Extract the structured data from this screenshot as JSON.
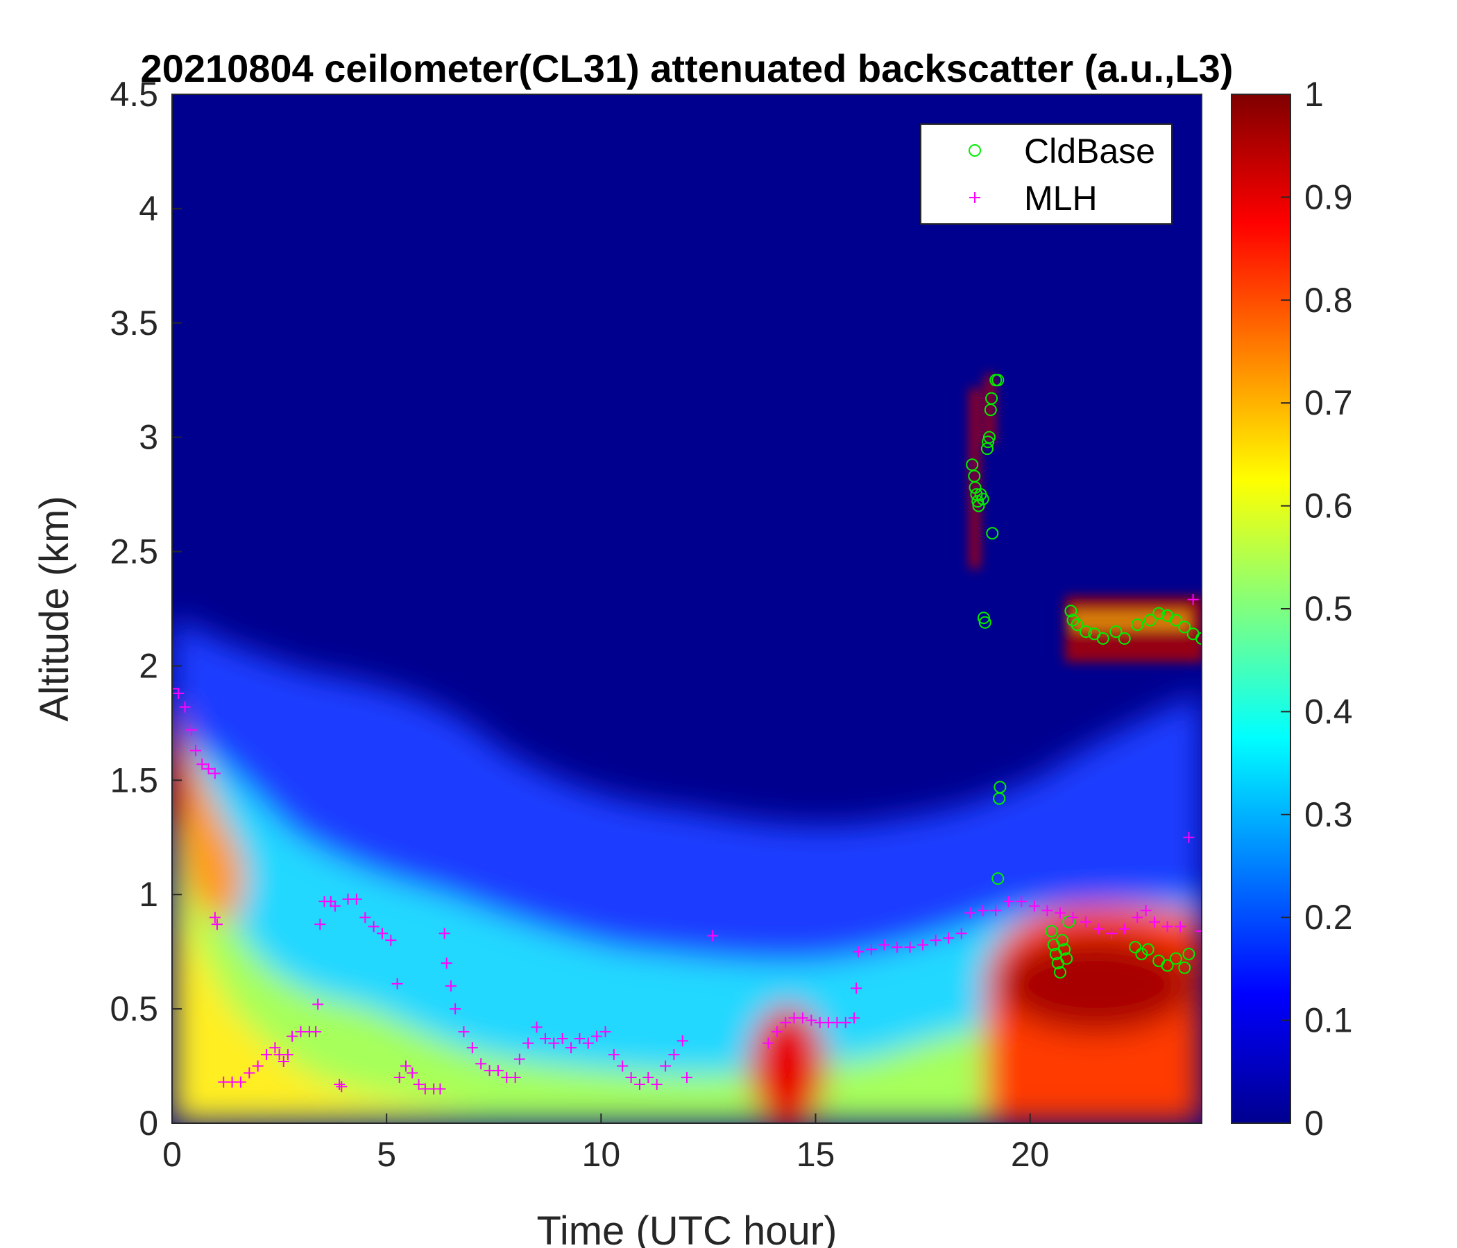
{
  "chart_data": {
    "type": "heatmap",
    "title": "20210804 ceilometer(CL31) attenuated backscatter (a.u.,L3)",
    "xlabel": "Time (UTC hour)",
    "ylabel": "Altitude (km)",
    "xlim": [
      0,
      24
    ],
    "ylim": [
      0,
      4.5
    ],
    "x_ticks": [
      0,
      5,
      10,
      15,
      20
    ],
    "y_ticks": [
      0,
      0.5,
      1,
      1.5,
      2,
      2.5,
      3,
      3.5,
      4,
      4.5
    ],
    "y_tick_labels": [
      "0",
      "0.5",
      "1",
      "1.5",
      "2",
      "2.5",
      "3",
      "3.5",
      "4",
      "4.5"
    ],
    "colorbar": {
      "colormap": "jet",
      "range": [
        0,
        1
      ],
      "ticks": [
        0,
        0.1,
        0.2,
        0.3,
        0.4,
        0.5,
        0.6,
        0.7,
        0.8,
        0.9,
        1
      ],
      "tick_labels": [
        "0",
        "0.1",
        "0.2",
        "0.3",
        "0.4",
        "0.5",
        "0.6",
        "0.7",
        "0.8",
        "0.9",
        "1"
      ]
    },
    "legend": {
      "position": "top-right"
    },
    "series": [
      {
        "name": "CldBase",
        "marker": "circle",
        "color": "#00ee00",
        "points": [
          [
            18.65,
            2.88
          ],
          [
            18.7,
            2.83
          ],
          [
            18.72,
            2.78
          ],
          [
            18.75,
            2.75
          ],
          [
            18.78,
            2.72
          ],
          [
            18.8,
            2.7
          ],
          [
            18.85,
            2.75
          ],
          [
            18.9,
            2.73
          ],
          [
            18.92,
            2.21
          ],
          [
            18.95,
            2.19
          ],
          [
            19.0,
            2.95
          ],
          [
            19.02,
            2.98
          ],
          [
            19.05,
            3.0
          ],
          [
            19.08,
            3.12
          ],
          [
            19.1,
            3.17
          ],
          [
            19.12,
            2.58
          ],
          [
            19.2,
            3.25
          ],
          [
            19.25,
            3.25
          ],
          [
            19.28,
            1.42
          ],
          [
            19.3,
            1.47
          ],
          [
            19.25,
            1.07
          ],
          [
            20.5,
            0.84
          ],
          [
            20.55,
            0.78
          ],
          [
            20.6,
            0.74
          ],
          [
            20.65,
            0.7
          ],
          [
            20.7,
            0.66
          ],
          [
            20.75,
            0.8
          ],
          [
            20.8,
            0.76
          ],
          [
            20.85,
            0.72
          ],
          [
            20.9,
            0.88
          ],
          [
            20.95,
            2.24
          ],
          [
            21.0,
            2.2
          ],
          [
            21.1,
            2.18
          ],
          [
            21.3,
            2.15
          ],
          [
            21.5,
            2.14
          ],
          [
            21.7,
            2.12
          ],
          [
            22.0,
            2.15
          ],
          [
            22.2,
            2.12
          ],
          [
            22.5,
            2.18
          ],
          [
            22.8,
            2.2
          ],
          [
            23.0,
            2.23
          ],
          [
            23.2,
            2.22
          ],
          [
            23.4,
            2.2
          ],
          [
            23.6,
            2.17
          ],
          [
            23.8,
            2.14
          ],
          [
            24.0,
            2.12
          ],
          [
            22.45,
            0.77
          ],
          [
            22.6,
            0.74
          ],
          [
            22.75,
            0.76
          ],
          [
            23.0,
            0.71
          ],
          [
            23.2,
            0.69
          ],
          [
            23.4,
            0.72
          ],
          [
            23.6,
            0.68
          ],
          [
            23.7,
            0.74
          ]
        ]
      },
      {
        "name": "MLH",
        "marker": "plus",
        "color": "#ff00ff",
        "points": [
          [
            0.0,
            1.9
          ],
          [
            0.15,
            1.88
          ],
          [
            0.3,
            1.82
          ],
          [
            0.45,
            1.72
          ],
          [
            0.55,
            1.63
          ],
          [
            0.7,
            1.57
          ],
          [
            0.85,
            1.55
          ],
          [
            1.0,
            1.53
          ],
          [
            1.0,
            0.9
          ],
          [
            1.05,
            0.87
          ],
          [
            1.2,
            0.18
          ],
          [
            1.4,
            0.18
          ],
          [
            1.6,
            0.18
          ],
          [
            1.8,
            0.22
          ],
          [
            2.0,
            0.25
          ],
          [
            2.2,
            0.3
          ],
          [
            2.4,
            0.33
          ],
          [
            2.5,
            0.3
          ],
          [
            2.6,
            0.27
          ],
          [
            2.7,
            0.3
          ],
          [
            2.8,
            0.38
          ],
          [
            3.0,
            0.4
          ],
          [
            3.2,
            0.4
          ],
          [
            3.35,
            0.4
          ],
          [
            3.4,
            0.52
          ],
          [
            3.45,
            0.87
          ],
          [
            3.55,
            0.97
          ],
          [
            3.7,
            0.97
          ],
          [
            3.8,
            0.95
          ],
          [
            3.9,
            0.17
          ],
          [
            3.95,
            0.16
          ],
          [
            4.1,
            0.98
          ],
          [
            4.3,
            0.98
          ],
          [
            4.5,
            0.9
          ],
          [
            4.7,
            0.86
          ],
          [
            4.9,
            0.83
          ],
          [
            5.1,
            0.8
          ],
          [
            5.25,
            0.61
          ],
          [
            5.3,
            0.2
          ],
          [
            5.45,
            0.25
          ],
          [
            5.6,
            0.22
          ],
          [
            5.75,
            0.17
          ],
          [
            5.9,
            0.15
          ],
          [
            6.1,
            0.15
          ],
          [
            6.25,
            0.15
          ],
          [
            6.35,
            0.83
          ],
          [
            6.4,
            0.7
          ],
          [
            6.5,
            0.6
          ],
          [
            6.6,
            0.5
          ],
          [
            6.8,
            0.4
          ],
          [
            7.0,
            0.33
          ],
          [
            7.2,
            0.26
          ],
          [
            7.4,
            0.23
          ],
          [
            7.6,
            0.23
          ],
          [
            7.8,
            0.2
          ],
          [
            8.0,
            0.2
          ],
          [
            8.1,
            0.28
          ],
          [
            8.3,
            0.35
          ],
          [
            8.5,
            0.42
          ],
          [
            8.7,
            0.37
          ],
          [
            8.9,
            0.35
          ],
          [
            9.1,
            0.37
          ],
          [
            9.3,
            0.33
          ],
          [
            9.5,
            0.37
          ],
          [
            9.7,
            0.35
          ],
          [
            9.9,
            0.38
          ],
          [
            10.1,
            0.4
          ],
          [
            10.3,
            0.3
          ],
          [
            10.5,
            0.25
          ],
          [
            10.7,
            0.2
          ],
          [
            10.9,
            0.17
          ],
          [
            11.1,
            0.2
          ],
          [
            11.3,
            0.17
          ],
          [
            11.5,
            0.25
          ],
          [
            11.7,
            0.3
          ],
          [
            11.9,
            0.36
          ],
          [
            12.0,
            0.2
          ],
          [
            12.6,
            0.82
          ],
          [
            13.9,
            0.35
          ],
          [
            14.1,
            0.4
          ],
          [
            14.3,
            0.44
          ],
          [
            14.5,
            0.46
          ],
          [
            14.7,
            0.46
          ],
          [
            14.9,
            0.45
          ],
          [
            15.1,
            0.44
          ],
          [
            15.3,
            0.44
          ],
          [
            15.5,
            0.44
          ],
          [
            15.7,
            0.44
          ],
          [
            15.9,
            0.46
          ],
          [
            15.95,
            0.59
          ],
          [
            16.0,
            0.75
          ],
          [
            16.3,
            0.76
          ],
          [
            16.6,
            0.78
          ],
          [
            16.9,
            0.77
          ],
          [
            17.2,
            0.77
          ],
          [
            17.5,
            0.78
          ],
          [
            17.8,
            0.8
          ],
          [
            18.1,
            0.81
          ],
          [
            18.4,
            0.83
          ],
          [
            18.6,
            0.92
          ],
          [
            18.9,
            0.93
          ],
          [
            19.2,
            0.93
          ],
          [
            19.5,
            0.97
          ],
          [
            19.8,
            0.97
          ],
          [
            20.1,
            0.95
          ],
          [
            20.4,
            0.93
          ],
          [
            20.7,
            0.92
          ],
          [
            21.0,
            0.9
          ],
          [
            21.3,
            0.88
          ],
          [
            21.6,
            0.85
          ],
          [
            21.9,
            0.83
          ],
          [
            22.2,
            0.85
          ],
          [
            22.5,
            0.9
          ],
          [
            22.7,
            0.93
          ],
          [
            22.9,
            0.88
          ],
          [
            23.2,
            0.86
          ],
          [
            23.5,
            0.86
          ],
          [
            23.7,
            1.25
          ],
          [
            23.8,
            2.29
          ],
          [
            24.0,
            0.84
          ]
        ]
      }
    ]
  }
}
